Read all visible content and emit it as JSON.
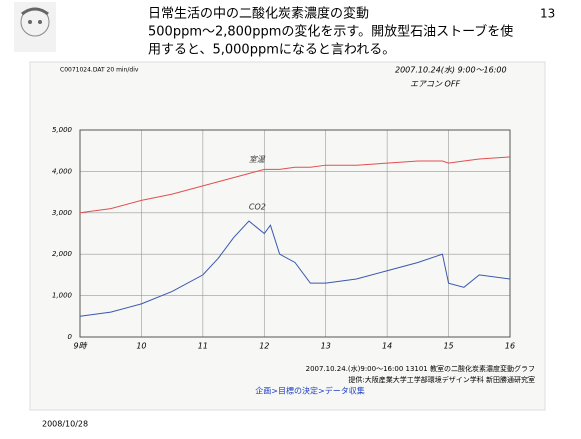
{
  "slide": {
    "title": "日常生活の中の二酸化炭素濃度の変動",
    "page": "13",
    "lines": [
      "500ppm～2,800ppmの変化を示す。開放型石油ストーブを使",
      "用すると、5,000ppmになると言われる。"
    ],
    "date": "2008/10/28",
    "breadcrumb": "企画>目標の決定>データ収集"
  },
  "chart_data": {
    "type": "line",
    "header": "C0071024.DAT  20 min/div",
    "annotations": [
      "2007.10.24(水) 9:00～16:00",
      "エアコン OFF"
    ],
    "caption": [
      "2007.10.24.(水)9:00～16:00 13101 教室の二酸化炭素濃度変動グラフ",
      "提供:大阪産業大学工学部環境デザイン学科 新田勝通研究室"
    ],
    "x": [
      9,
      9.5,
      10,
      10.5,
      11,
      11.25,
      11.5,
      11.75,
      12,
      12.1,
      12.25,
      12.5,
      12.75,
      13,
      13.5,
      14,
      14.5,
      14.9,
      15,
      15.25,
      15.5,
      16
    ],
    "series": [
      {
        "name": "CO2",
        "color": "#3a58b0",
        "values": [
          500,
          600,
          800,
          1100,
          1500,
          1900,
          2400,
          2800,
          2500,
          2700,
          2000,
          1800,
          1300,
          1300,
          1400,
          1600,
          1800,
          2000,
          1300,
          1200,
          1500,
          1400
        ]
      },
      {
        "name": "室温",
        "color": "#e05050",
        "values": [
          3000,
          3100,
          3300,
          3450,
          3650,
          3750,
          3850,
          3950,
          4050,
          4050,
          4050,
          4100,
          4100,
          4150,
          4150,
          4200,
          4250,
          4250,
          4200,
          4250,
          4300,
          4350
        ]
      }
    ],
    "xlim": [
      9,
      16
    ],
    "ylim": [
      0,
      5000
    ],
    "xticks": [
      {
        "value": 9,
        "label": "9時"
      },
      10,
      11,
      12,
      13,
      14,
      15,
      16
    ],
    "yticks": [
      0,
      {
        "value": 1000,
        "label": "1,000"
      },
      {
        "value": 2000,
        "label": "2,000"
      },
      {
        "value": 3000,
        "label": "3,000"
      },
      {
        "value": 4000,
        "label": "4,000"
      },
      {
        "value": 5000,
        "label": "5,000"
      }
    ],
    "grid": true
  }
}
